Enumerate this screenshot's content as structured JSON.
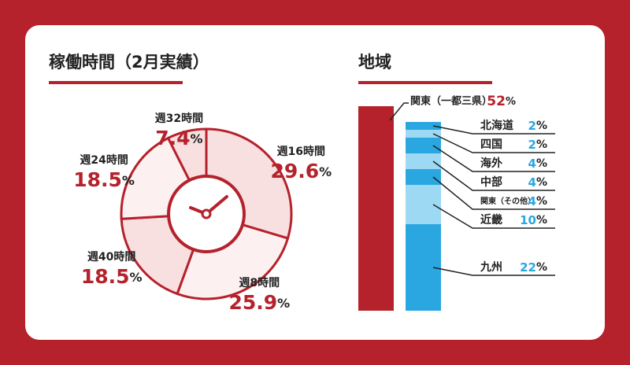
{
  "chart_data": [
    {
      "type": "pie",
      "title": "稼働時間（2月実績）",
      "categories": [
        "週16時間",
        "週8時間",
        "週40時間",
        "週24時間",
        "週32時間"
      ],
      "values": [
        29.6,
        25.9,
        18.5,
        18.5,
        7.4
      ],
      "value_labels": [
        "29.6%",
        "25.9%",
        "18.5%",
        "18.5%",
        "7.4%"
      ],
      "color": "#b5222c"
    },
    {
      "type": "stacked-bar",
      "title": "地域",
      "stacks": [
        [
          {
            "name": "関東（一都三県）",
            "color": "#b5222c",
            "value": 52,
            "value_label": "52%"
          }
        ],
        [
          {
            "name": "北海道",
            "color": "#2aa7e0",
            "value": 2,
            "value_label": "2%"
          },
          {
            "name": "四国",
            "color": "#9dd9f3",
            "value": 2,
            "value_label": "2%"
          },
          {
            "name": "海外",
            "color": "#2aa7e0",
            "value": 4,
            "value_label": "4%"
          },
          {
            "name": "中部",
            "color": "#9dd9f3",
            "value": 4,
            "value_label": "4%"
          },
          {
            "name": "関東（その他）",
            "color": "#2aa7e0",
            "value": 4,
            "value_label": "4%"
          },
          {
            "name": "近畿",
            "color": "#9dd9f3",
            "value": 10,
            "value_label": "10%"
          },
          {
            "name": "九州",
            "color": "#2aa7e0",
            "value": 22,
            "value_label": "22%"
          }
        ]
      ]
    }
  ]
}
